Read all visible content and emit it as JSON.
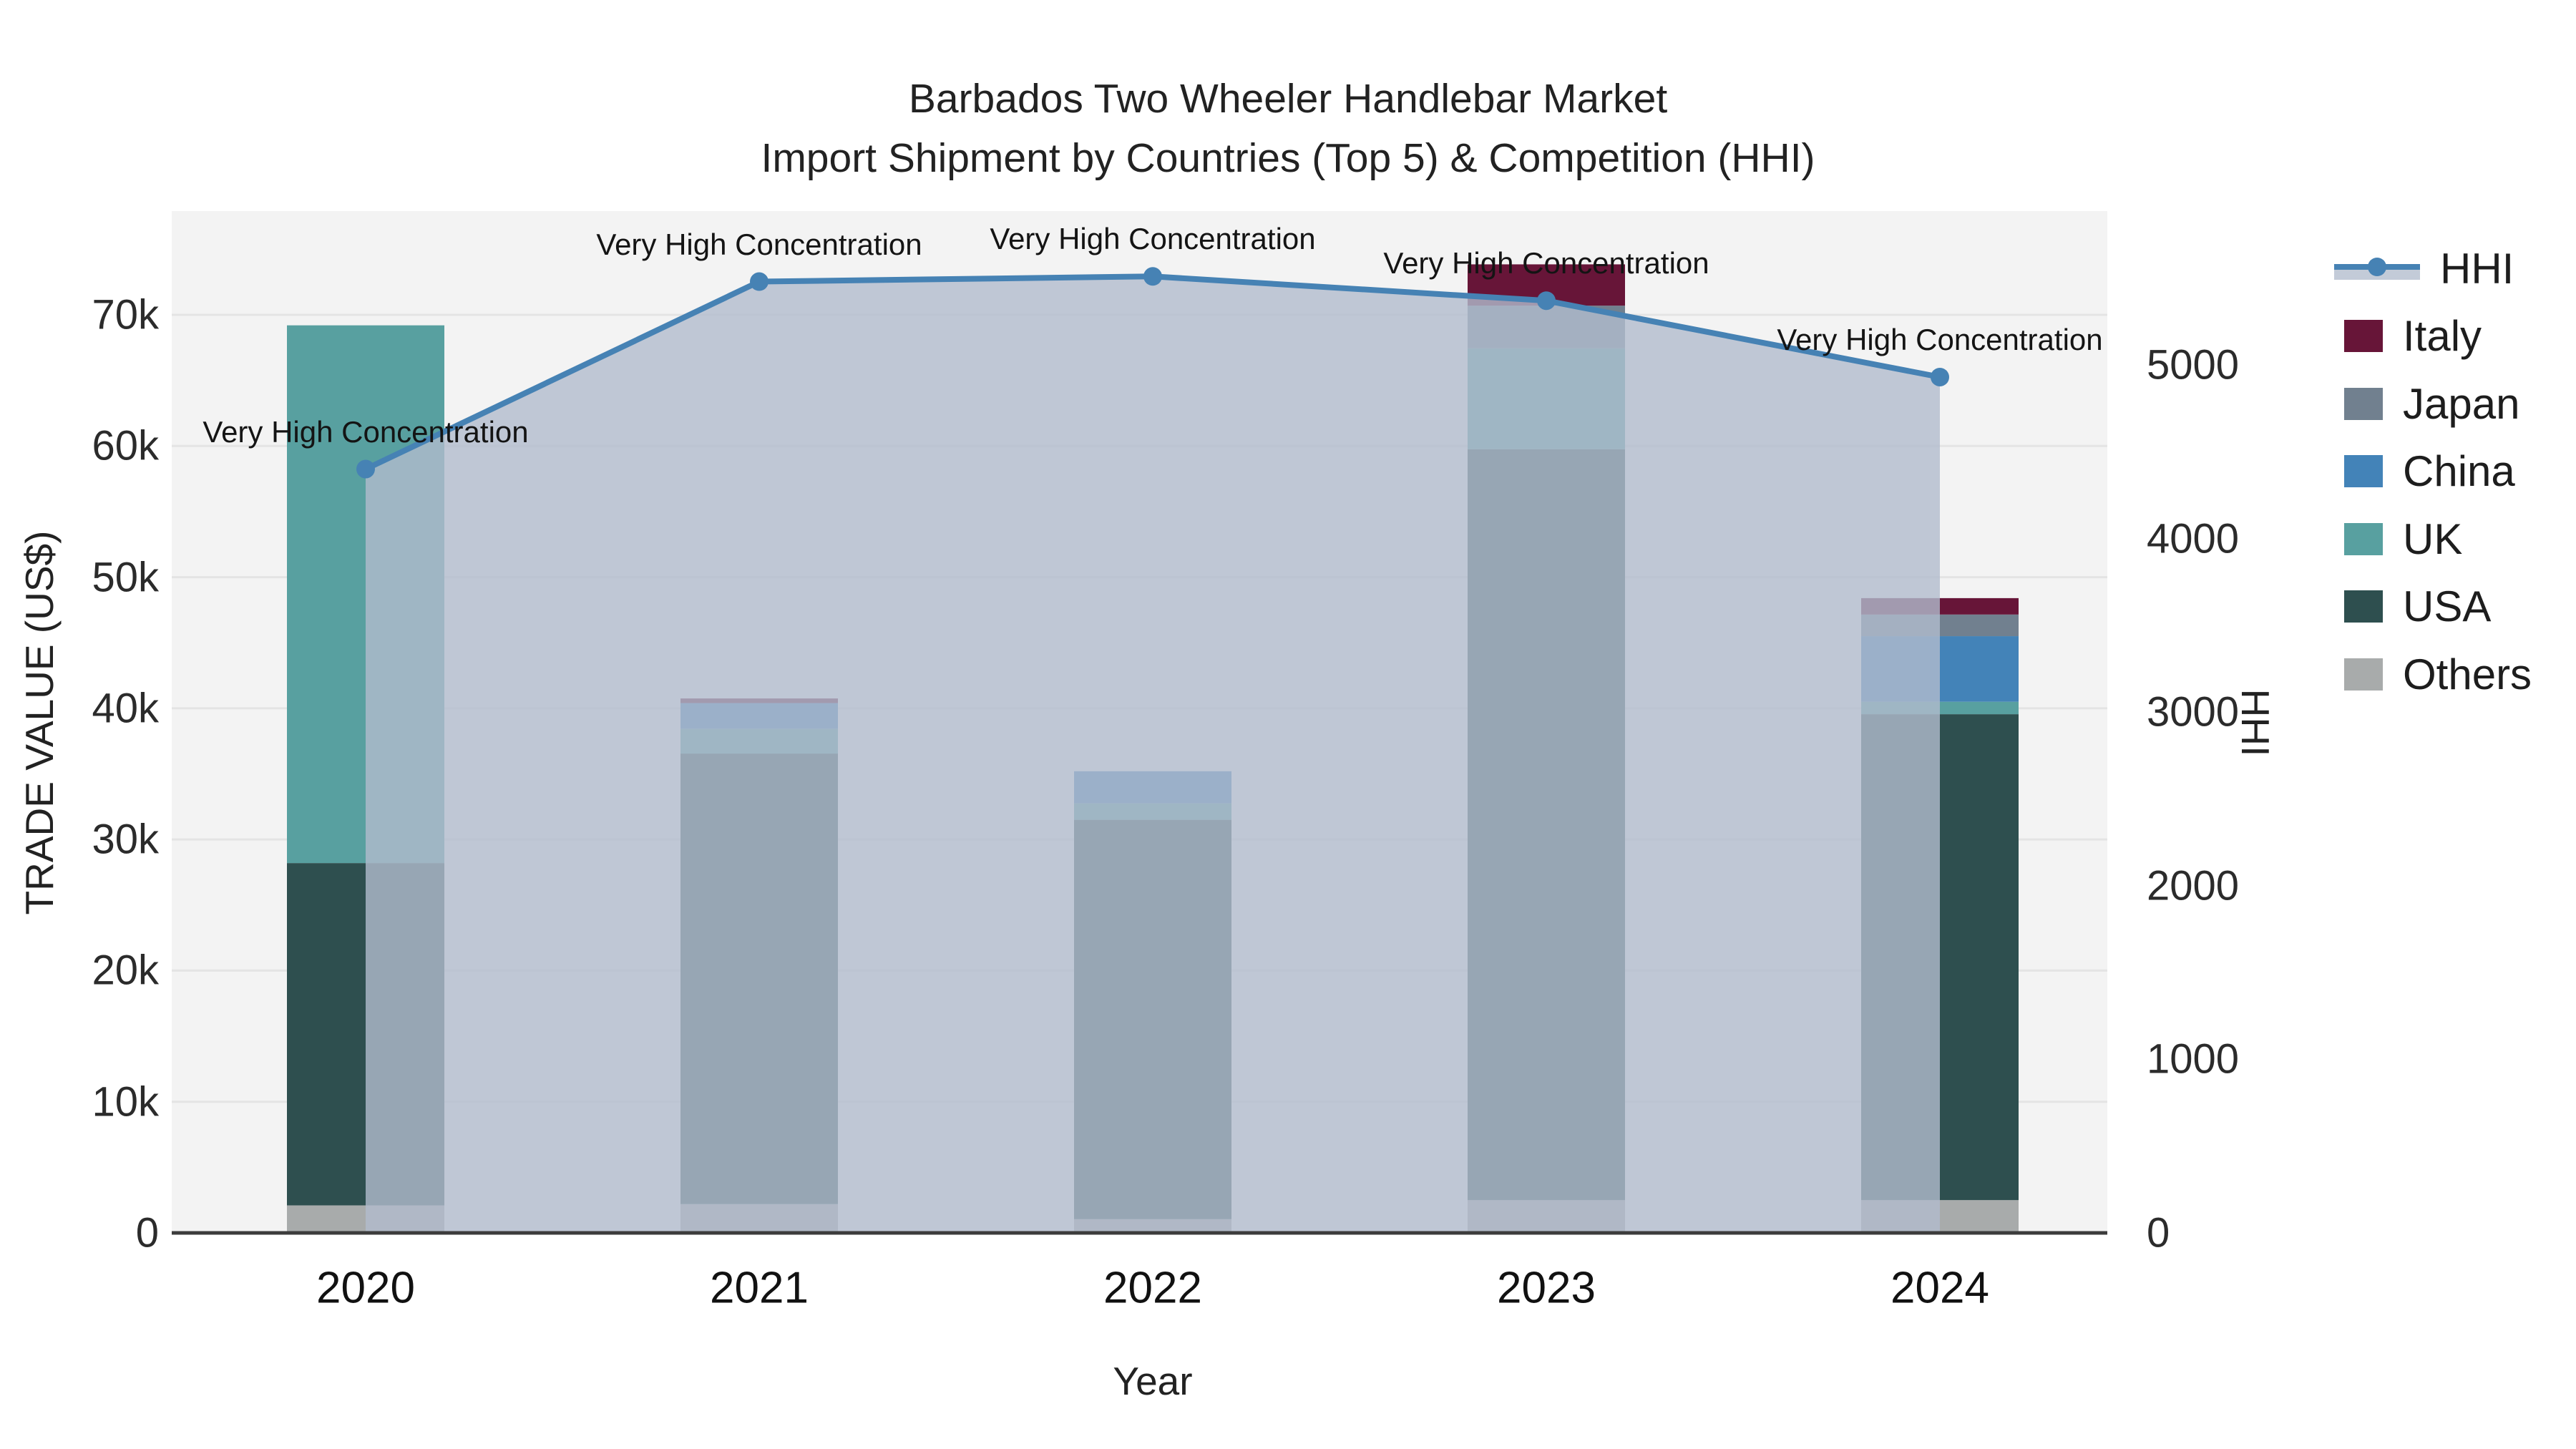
{
  "title": {
    "line1": "Barbados Two Wheeler Handlebar Market",
    "line2": "Import Shipment by Countries (Top 5) & Competition (HHI)"
  },
  "legend": {
    "items": [
      {
        "label": "HHI",
        "type": "line",
        "color": "#4682b4",
        "fill": "#c3cbd8"
      },
      {
        "label": "Italy",
        "type": "swatch",
        "color": "#671538"
      },
      {
        "label": "Japan",
        "type": "swatch",
        "color": "#71808f"
      },
      {
        "label": "China",
        "type": "swatch",
        "color": "#4383b8"
      },
      {
        "label": "UK",
        "type": "swatch",
        "color": "#58a0a0"
      },
      {
        "label": "USA",
        "type": "swatch",
        "color": "#2e4f4f"
      },
      {
        "label": "Others",
        "type": "swatch",
        "color": "#a8abab"
      }
    ]
  },
  "chart_data": {
    "type": "bar",
    "subtype": "stacked bars with secondary-axis line (HHI)",
    "x": [
      "2020",
      "2021",
      "2022",
      "2023",
      "2024"
    ],
    "series": [
      {
        "name": "Others",
        "color": "#a8abab",
        "values": [
          2100,
          2200,
          1050,
          2500,
          2500
        ]
      },
      {
        "name": "USA",
        "color": "#2e4f4f",
        "values": [
          26100,
          34350,
          30450,
          57250,
          37050
        ]
      },
      {
        "name": "UK",
        "color": "#58a0a0",
        "values": [
          41000,
          1900,
          1250,
          7700,
          950
        ]
      },
      {
        "name": "China",
        "color": "#4383b8",
        "values": [
          0,
          1950,
          2450,
          0,
          5000
        ]
      },
      {
        "name": "Japan",
        "color": "#71808f",
        "values": [
          0,
          0,
          0,
          3250,
          1650
        ]
      },
      {
        "name": "Italy",
        "color": "#671538",
        "values": [
          0,
          350,
          0,
          3150,
          1250
        ]
      }
    ],
    "bar_totals": [
      69200,
      40750,
      35200,
      73850,
      48400
    ],
    "line_series": {
      "name": "HHI",
      "color": "#4682b4",
      "area_fill": "rgba(177,188,205,0.8)",
      "values": [
        4400,
        5480,
        5510,
        5370,
        4930
      ]
    },
    "annotations": [
      "Very High Concentration",
      "Very High Concentration",
      "Very High Concentration",
      "Very High Concentration",
      "Very High Concentration"
    ],
    "left_axis": {
      "title": "TRADE VALUE (US$)",
      "tick_labels": [
        "0",
        "10k",
        "20k",
        "30k",
        "40k",
        "50k",
        "60k",
        "70k"
      ],
      "tick_values": [
        0,
        10000,
        20000,
        30000,
        40000,
        50000,
        60000,
        70000
      ],
      "range": [
        0,
        77600
      ]
    },
    "right_axis": {
      "title": "HHI",
      "tick_labels": [
        "0",
        "1000",
        "2000",
        "3000",
        "4000",
        "5000"
      ],
      "tick_values": [
        0,
        1000,
        2000,
        3000,
        4000,
        5000
      ],
      "range": [
        0,
        5880
      ]
    },
    "x_axis": {
      "title": "Year",
      "tick_labels": [
        "2020",
        "2021",
        "2022",
        "2023",
        "2024"
      ]
    },
    "grid": "horizontal light gridlines at 10k steps",
    "legend_position": "right"
  }
}
